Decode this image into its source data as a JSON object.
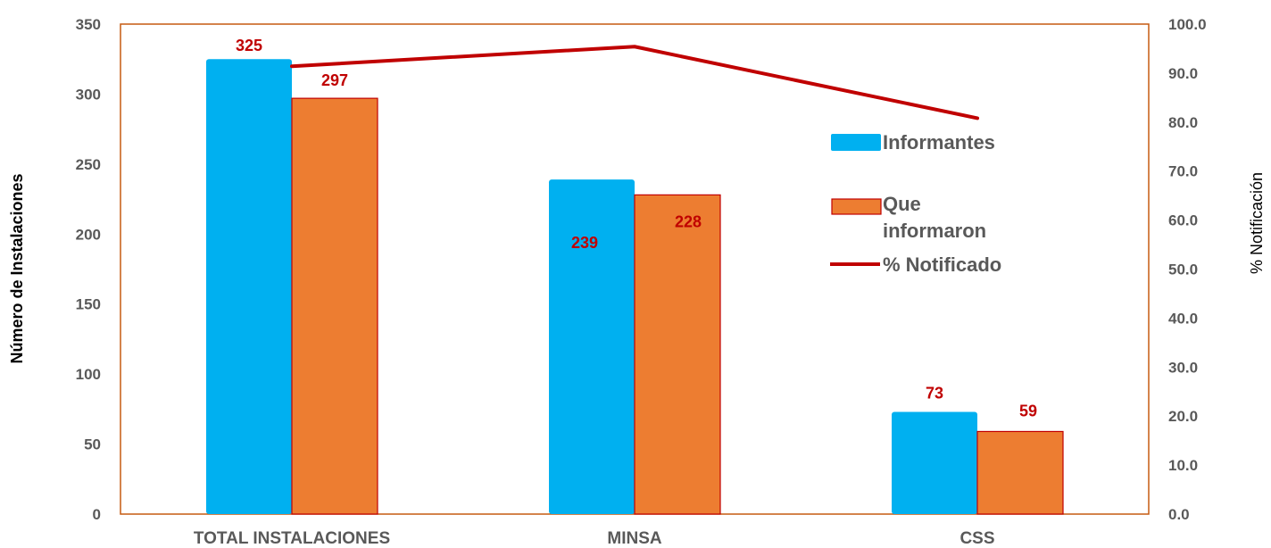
{
  "chart_data": {
    "type": "bar",
    "categories": [
      "TOTAL INSTALACIONES",
      "MINSA",
      "CSS"
    ],
    "series": [
      {
        "name": "Informantes",
        "type": "bar",
        "axis": "left",
        "color": "#00b0f0",
        "values": [
          325,
          239,
          73
        ]
      },
      {
        "name": "Que informaron",
        "type": "bar",
        "axis": "left",
        "color": "#ed7d31",
        "values": [
          297,
          228,
          59
        ]
      },
      {
        "name": "% Notificado",
        "type": "line",
        "axis": "right",
        "color": "#c00000",
        "values": [
          91.4,
          95.4,
          80.8
        ]
      }
    ],
    "data_labels": {
      "Informantes": [
        "325",
        "239",
        "73"
      ],
      "Que informaron": [
        "297",
        "228",
        "59"
      ]
    },
    "ylabel": "Número de Instalaciones",
    "y2label": "% Notificación",
    "ylim": [
      0,
      350
    ],
    "y2lim": [
      0,
      100
    ],
    "yticks": [
      "0",
      "50",
      "100",
      "150",
      "200",
      "250",
      "300",
      "350"
    ],
    "y2ticks": [
      "0.0",
      "10.0",
      "20.0",
      "30.0",
      "40.0",
      "50.0",
      "60.0",
      "70.0",
      "80.0",
      "90.0",
      "100.0"
    ],
    "legend": {
      "position": "right",
      "items": [
        {
          "label_lines": [
            "Informantes"
          ]
        },
        {
          "label_lines": [
            "Que",
            "informaron"
          ]
        },
        {
          "label_lines": [
            "% Notificado"
          ]
        }
      ]
    },
    "grid": false,
    "frame_color": "#c55a11"
  }
}
